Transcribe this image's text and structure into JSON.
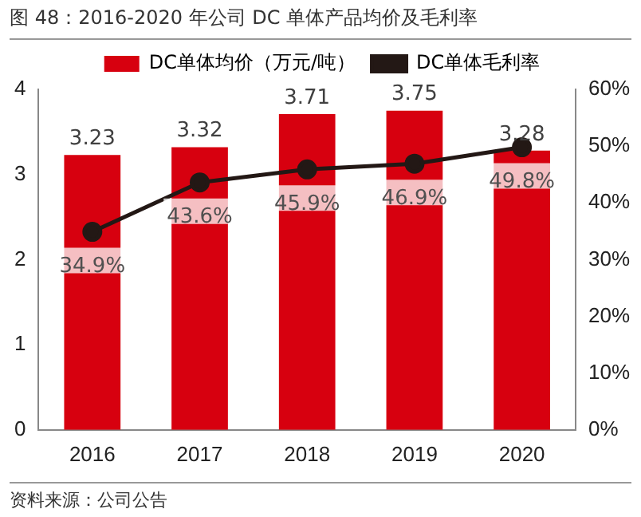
{
  "chart_data": {
    "type": "bar",
    "title": "图 48：2016-2020 年公司 DC 单体产品均价及毛利率",
    "categories": [
      "2016",
      "2017",
      "2018",
      "2019",
      "2020"
    ],
    "series": [
      {
        "name": "DC单体均价（万元/吨）",
        "color": "#d7000f",
        "values": [
          3.23,
          3.32,
          3.71,
          3.75,
          3.28
        ],
        "value_labels": [
          "3.23",
          "3.32",
          "3.71",
          "3.75",
          "3.28"
        ]
      },
      {
        "name": "DC单体毛利率",
        "type": "line",
        "axis": "y2",
        "color": "#231815",
        "marker": "circle",
        "values": [
          34.9,
          43.6,
          45.9,
          46.9,
          49.8
        ],
        "value_labels": [
          "34.9%",
          "43.6%",
          "45.9%",
          "46.9%",
          "49.8%"
        ]
      }
    ],
    "ylim": [
      0,
      4
    ],
    "yticks": [
      0,
      1,
      2,
      3,
      4
    ],
    "y2lim": [
      0,
      60
    ],
    "y2ticks": [
      {
        "value": 0,
        "label": "0%"
      },
      {
        "value": 10,
        "label": "10%"
      },
      {
        "value": 20,
        "label": "20%"
      },
      {
        "value": 30,
        "label": "30%"
      },
      {
        "value": 40,
        "label": "40%"
      },
      {
        "value": 50,
        "label": "50%"
      },
      {
        "value": 60,
        "label": "60%"
      }
    ],
    "legend": "top",
    "grid": false,
    "annotations": [
      "资料来源：公司公告"
    ]
  }
}
